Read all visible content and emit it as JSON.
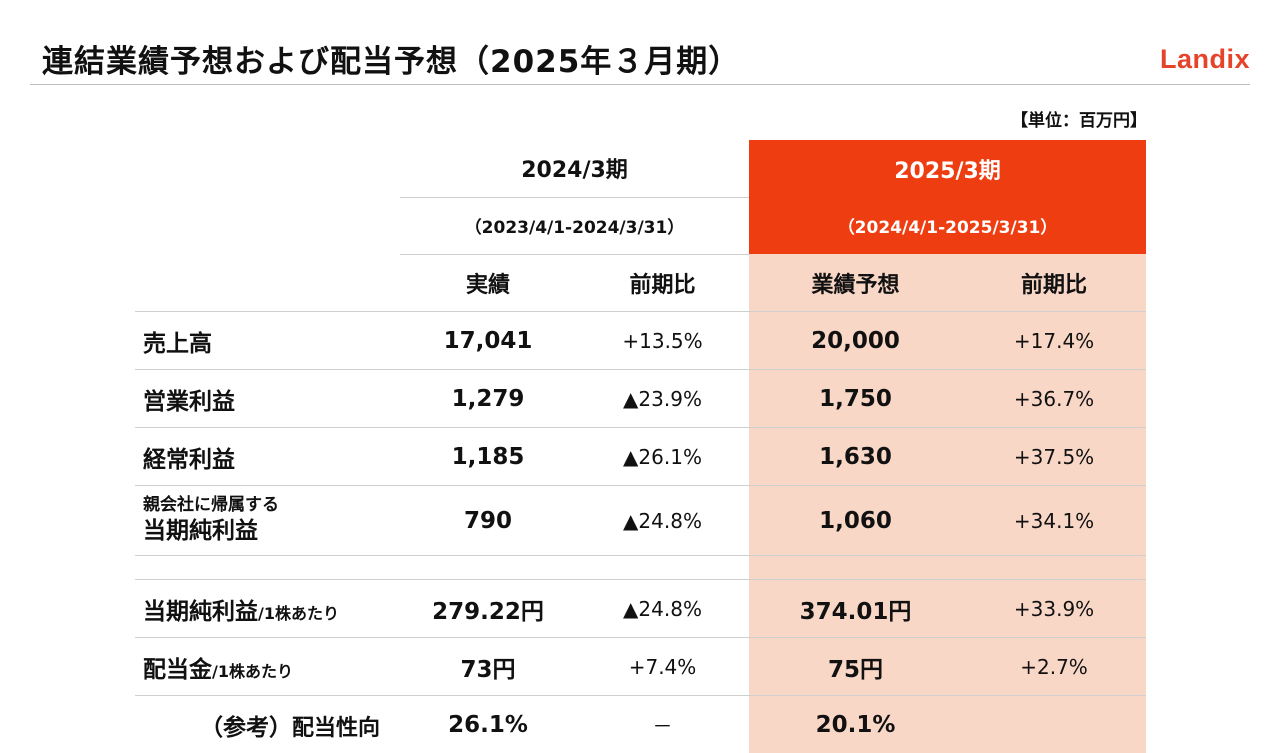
{
  "slide": {
    "title": "連結業績予想および配当予想（2025年３月期）",
    "logo": "Landix",
    "unit": "【単位：百万円】"
  },
  "columns": {
    "fy2024": {
      "year": "2024/3期",
      "range": "（2023/4/1-2024/3/31）",
      "actual": "実績",
      "yoy": "前期比"
    },
    "fy2025": {
      "year": "2025/3期",
      "range": "（2024/4/1-2025/3/31）",
      "forecast": "業績予想",
      "yoy": "前期比"
    }
  },
  "rows": [
    {
      "label": "売上高",
      "actual": "17,041",
      "actual_yoy": "+13.5%",
      "forecast": "20,000",
      "forecast_yoy": "+17.4%"
    },
    {
      "label": "営業利益",
      "actual": "1,279",
      "actual_yoy": "▲23.9%",
      "forecast": "1,750",
      "forecast_yoy": "+36.7%"
    },
    {
      "label": "経常利益",
      "actual": "1,185",
      "actual_yoy": "▲26.1%",
      "forecast": "1,630",
      "forecast_yoy": "+37.5%"
    },
    {
      "label_line1": "親会社に帰属する",
      "label_line2": "当期純利益",
      "actual": "790",
      "actual_yoy": "▲24.8%",
      "forecast": "1,060",
      "forecast_yoy": "+34.1%"
    }
  ],
  "per_share": [
    {
      "label": "当期純利益",
      "label_sub": "/1株あたり",
      "actual": "279.22円",
      "actual_yoy": "▲24.8%",
      "forecast": "374.01円",
      "forecast_yoy": "+33.9%"
    },
    {
      "label": "配当金",
      "label_sub": "/1株あたり",
      "actual": "73円",
      "actual_yoy": "+7.4%",
      "forecast": "75円",
      "forecast_yoy": "+2.7%"
    }
  ],
  "payout": {
    "label_prefix": "（参考）",
    "label": "配当性向",
    "actual": "26.1%",
    "actual_yoy": "－",
    "forecast": "20.1%"
  },
  "colors": {
    "accent": "#ef3d12",
    "forecast_bg": "#f9d7c7",
    "logo": "#e5432a"
  }
}
